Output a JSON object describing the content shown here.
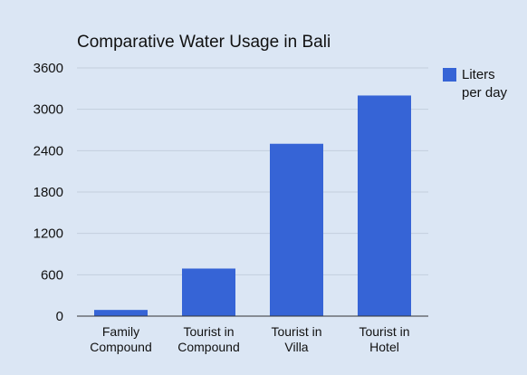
{
  "chart_data": {
    "type": "bar",
    "title": "Comparative Water Usage in Bali",
    "xlabel": "",
    "ylabel": "",
    "categories": [
      [
        "Family",
        "Compound"
      ],
      [
        "Tourist in",
        "Compound"
      ],
      [
        "Tourist in",
        "Villa"
      ],
      [
        "Tourist in",
        "Hotel"
      ]
    ],
    "series": [
      {
        "name": "Liters per day",
        "legend_lines": [
          "Liters",
          "per day"
        ],
        "color": "#3664d6",
        "values": [
          90,
          690,
          2500,
          3200
        ]
      }
    ],
    "ylim": [
      0,
      3600
    ],
    "yticks": [
      0,
      600,
      1200,
      1800,
      2400,
      3000,
      3600
    ],
    "grid": true,
    "legend_position": "right"
  }
}
